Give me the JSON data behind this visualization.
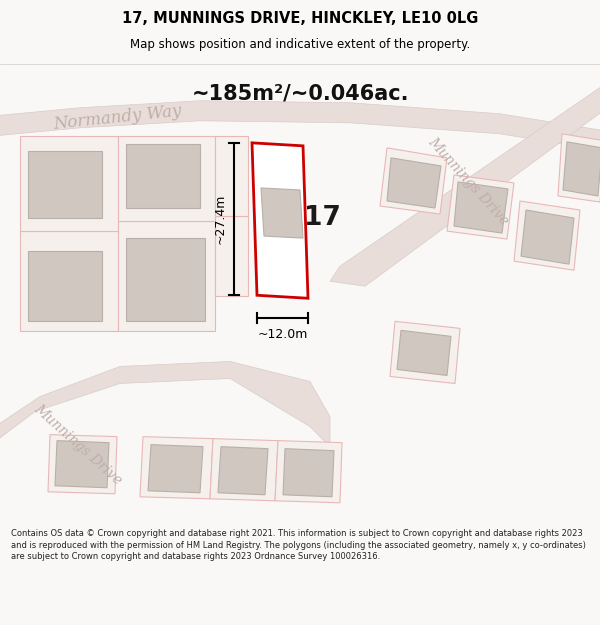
{
  "title_line1": "17, MUNNINGS DRIVE, HINCKLEY, LE10 0LG",
  "title_line2": "Map shows position and indicative extent of the property.",
  "area_text": "~185m²/~0.046ac.",
  "number_label": "17",
  "dim_vertical": "~27.4m",
  "dim_horizontal": "~12.0m",
  "street_label_top": "Normandy Way",
  "street_label_bottom_left": "Munnings Drive",
  "street_label_bottom_right": "Munnings Drive",
  "footer_text": "Contains OS data © Crown copyright and database right 2021. This information is subject to Crown copyright and database rights 2023 and is reproduced with the permission of HM Land Registry. The polygons (including the associated geometry, namely x, y co-ordinates) are subject to Crown copyright and database rights 2023 Ordnance Survey 100026316.",
  "bg_color": "#f9f8f6",
  "map_bg": "#f0ece6",
  "road_color": "#e8ddd8",
  "plot_line_color": "#e8b8b8",
  "plot_fill": "#f5f0ec",
  "highlight_color": "#cc0000",
  "building_color": "#d0c8c0",
  "building_edge": "#b8b0a8",
  "dim_color": "#000000",
  "street_color": "#c0aeaa",
  "title_color": "#000000",
  "footer_color": "#222222"
}
